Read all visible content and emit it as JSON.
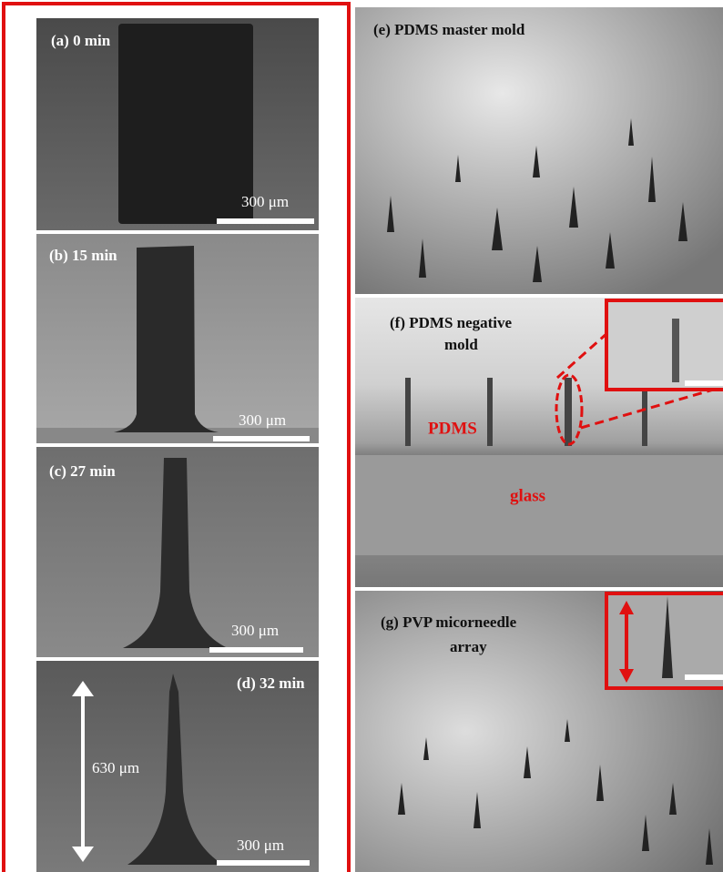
{
  "panels": [
    {
      "label": "(a) 0 min",
      "scale_bar": "300 μm"
    },
    {
      "label": "(b) 15 min",
      "scale_bar": "300 μm"
    },
    {
      "label": "(c) 27 min",
      "scale_bar": "300 μm"
    },
    {
      "label": "(d) 32 min",
      "scale_bar": "300 μm",
      "height_label": "630 μm"
    }
  ],
  "right_panels": [
    {
      "label": "(e) PDMS master mold"
    },
    {
      "label_lines": [
        "(f) PDMS negative",
        "mold"
      ],
      "materials": [
        "PDMS",
        "glass"
      ]
    },
    {
      "label_lines": [
        "(g) PVP micorneedle",
        "array"
      ]
    }
  ]
}
